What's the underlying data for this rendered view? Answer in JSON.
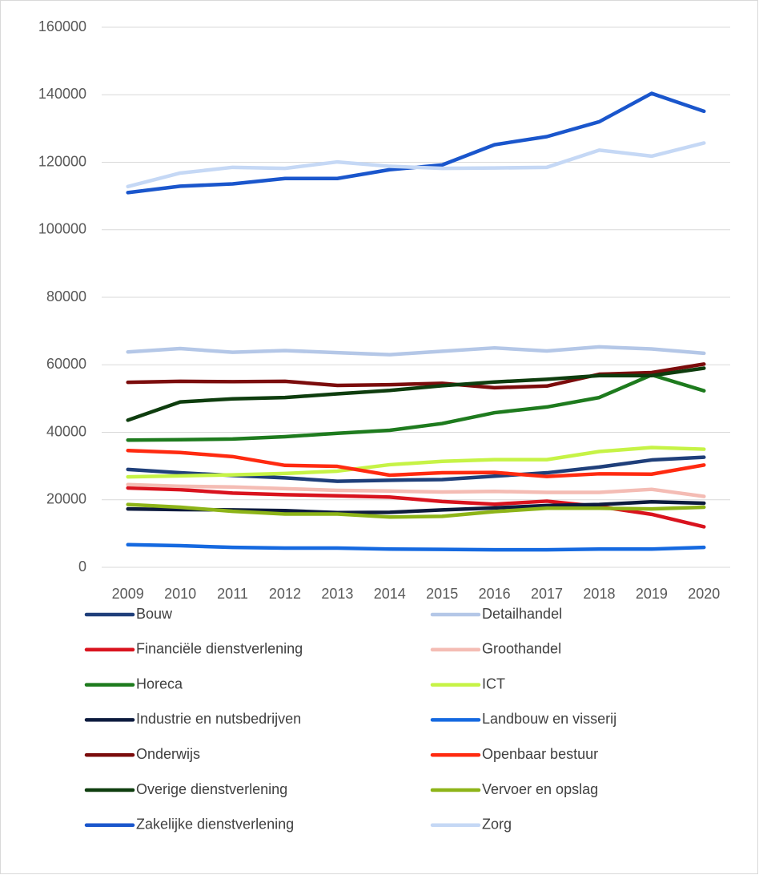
{
  "chart_data": {
    "type": "line",
    "categories": [
      "2009",
      "2010",
      "2011",
      "2012",
      "2013",
      "2014",
      "2015",
      "2016",
      "2017",
      "2018",
      "2019",
      "2020"
    ],
    "ylim": [
      0,
      160000
    ],
    "yticks": [
      0,
      20000,
      40000,
      60000,
      80000,
      100000,
      120000,
      140000,
      160000
    ],
    "grid": true,
    "legend": "bottom",
    "series": [
      {
        "name": "Bouw",
        "color": "#1f3f7a",
        "values": [
          29000,
          28000,
          27200,
          26500,
          25500,
          25800,
          26000,
          27000,
          28000,
          29700,
          31800,
          32600
        ]
      },
      {
        "name": "Detailhandel",
        "color": "#b4c7e7",
        "values": [
          63800,
          64800,
          63700,
          64200,
          63600,
          63000,
          64000,
          65000,
          64100,
          65300,
          64700,
          63400
        ]
      },
      {
        "name": "Financiële dienstverlening",
        "color": "#d9131e",
        "values": [
          23500,
          23000,
          22000,
          21500,
          21200,
          20800,
          19500,
          18700,
          19600,
          18000,
          15700,
          12000
        ]
      },
      {
        "name": "Groothandel",
        "color": "#f4bcb4",
        "values": [
          24500,
          24000,
          23800,
          23300,
          22800,
          22600,
          22300,
          22500,
          22200,
          22200,
          23100,
          21000
        ]
      },
      {
        "name": "Horeca",
        "color": "#1e7b1e",
        "values": [
          37700,
          37800,
          38000,
          38700,
          39700,
          40600,
          42600,
          45800,
          47500,
          50300,
          57000,
          52300
        ]
      },
      {
        "name": "ICT",
        "color": "#c6f346",
        "values": [
          26800,
          27100,
          27400,
          27800,
          28500,
          30400,
          31400,
          31900,
          31900,
          34300,
          35500,
          35000
        ]
      },
      {
        "name": "Industrie en nutsbedrijven",
        "color": "#0d1b3e",
        "values": [
          17300,
          17100,
          17000,
          16800,
          16200,
          16300,
          17000,
          17600,
          18300,
          18600,
          19400,
          19000
        ]
      },
      {
        "name": "Landbouw en visserij",
        "color": "#1569e0",
        "values": [
          6700,
          6400,
          5900,
          5700,
          5700,
          5400,
          5300,
          5200,
          5200,
          5400,
          5400,
          5900
        ]
      },
      {
        "name": "Onderwijs",
        "color": "#7b0c0c",
        "values": [
          54800,
          55100,
          55000,
          55100,
          53900,
          54100,
          54500,
          53200,
          53700,
          57200,
          57700,
          60200
        ]
      },
      {
        "name": "Openbaar bestuur",
        "color": "#ff2a10",
        "values": [
          34600,
          34000,
          32800,
          30200,
          29900,
          27300,
          28000,
          28100,
          26900,
          27700,
          27600,
          30300
        ]
      },
      {
        "name": "Overige dienstverlening",
        "color": "#0e3d0e",
        "values": [
          43600,
          49000,
          49900,
          50300,
          51400,
          52400,
          53800,
          54900,
          55700,
          56800,
          56800,
          59000
        ]
      },
      {
        "name": "Vervoer en opslag",
        "color": "#8db418",
        "values": [
          18600,
          17800,
          16600,
          15800,
          15800,
          14900,
          15100,
          16500,
          17500,
          17500,
          17300,
          17800
        ]
      },
      {
        "name": "Zakelijke dienstverlening",
        "color": "#1a56cc",
        "values": [
          111000,
          112900,
          113600,
          115200,
          115200,
          117800,
          119200,
          125200,
          127600,
          132000,
          140400,
          135100
        ]
      },
      {
        "name": "Zorg",
        "color": "#c5d8f5",
        "values": [
          112800,
          116800,
          118500,
          118200,
          120100,
          118800,
          118200,
          118300,
          118500,
          123600,
          121800,
          125700
        ]
      }
    ]
  }
}
